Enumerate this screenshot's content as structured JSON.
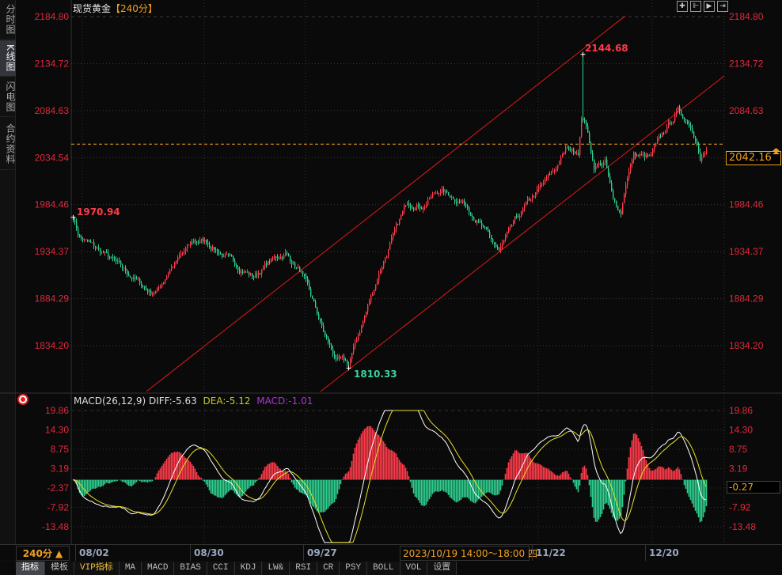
{
  "sidebar": {
    "items": [
      {
        "label": "分时图"
      },
      {
        "label": "K线图",
        "active": true
      },
      {
        "label": "闪电图"
      },
      {
        "label": "合约资料"
      }
    ]
  },
  "header": {
    "title": "现货黄金",
    "period_tag": "【240分】"
  },
  "toolbar": {
    "icons": [
      "crosshair-icon",
      "zoom-in-icon",
      "zoom-out-icon",
      "scroll-right-icon"
    ]
  },
  "colors": {
    "up": "#ff3b4a",
    "down": "#2ecf8f",
    "trendline": "#e01818",
    "diff": "#ffffff",
    "dea": "#e8e020",
    "current": "#f0a020"
  },
  "chart_data": [
    {
      "type": "candlestick",
      "title": "现货黄金 【240分】",
      "yticks": [
        "2184.80",
        "2134.72",
        "2084.63",
        "2034.54",
        "1984.46",
        "1934.37",
        "1884.29",
        "1834.20"
      ],
      "ylim": [
        1785,
        2190
      ],
      "bars": 401,
      "price_path": [
        [
          0,
          1970.9
        ],
        [
          4,
          1949.7
        ],
        [
          19,
          1932.8
        ],
        [
          34,
          1911.7
        ],
        [
          49,
          1890.6
        ],
        [
          54,
          1894.9
        ],
        [
          61,
          1916
        ],
        [
          76,
          1945.4
        ],
        [
          84,
          1945.4
        ],
        [
          99,
          1924.4
        ],
        [
          114,
          1907.5
        ],
        [
          124,
          1924
        ],
        [
          134,
          1932.8
        ],
        [
          144,
          1912
        ],
        [
          151,
          1882.2
        ],
        [
          159,
          1844.3
        ],
        [
          166,
          1819
        ],
        [
          174,
          1814.8
        ],
        [
          184,
          1865.4
        ],
        [
          194,
          1916
        ],
        [
          204,
          1958
        ],
        [
          211,
          1987.6
        ],
        [
          221,
          1983.4
        ],
        [
          231,
          2000.2
        ],
        [
          241,
          1992
        ],
        [
          249,
          1983.4
        ],
        [
          259,
          1958
        ],
        [
          269,
          1934.5
        ],
        [
          279,
          1966
        ],
        [
          286,
          1983
        ],
        [
          296,
          2004.4
        ],
        [
          304,
          2021.3
        ],
        [
          311,
          2042.4
        ],
        [
          319,
          2042.4
        ],
        [
          321,
          2076
        ],
        [
          323,
          2076.1
        ],
        [
          329,
          2025.5
        ],
        [
          336,
          2029.7
        ],
        [
          341,
          1987.6
        ],
        [
          346,
          1976.6
        ],
        [
          349,
          2008.6
        ],
        [
          354,
          2038.1
        ],
        [
          364,
          2034
        ],
        [
          374,
          2063.4
        ],
        [
          382,
          2084.6
        ],
        [
          389,
          2072
        ],
        [
          394,
          2055
        ],
        [
          396,
          2034
        ],
        [
          401,
          2042.16
        ]
      ],
      "spike": {
        "index": 322,
        "high": 2144.68
      },
      "current_price": "2042.16",
      "annotations": [
        {
          "label": "2144.68",
          "kind": "high"
        },
        {
          "label": "1970.94",
          "kind": "start"
        },
        {
          "label": "1810.33",
          "kind": "low"
        }
      ],
      "trendlines": [
        {
          "from": [
            46.5,
            1785.3
          ],
          "to": [
            349,
            2185.6
          ]
        },
        {
          "from": [
            156.5,
            1785.3
          ],
          "to": [
            411.5,
            2121.6
          ]
        }
      ],
      "xticks": [
        {
          "label": "08/02",
          "index": 4
        },
        {
          "label": "08/30",
          "index": 81
        },
        {
          "label": "09/27",
          "index": 145
        },
        {
          "label": "11/22",
          "index": 292
        },
        {
          "label": "12/20",
          "index": 364
        }
      ]
    },
    {
      "type": "macd",
      "params": "MACD(26,12,9)",
      "diff_label": "DIFF:-5.63",
      "dea_label": "DEA:-5.12",
      "macd_label": "MACD:-1.01",
      "yticks": [
        "19.86",
        "14.30",
        "8.75",
        "3.19",
        "-2.37",
        "-7.92",
        "-13.48"
      ],
      "current_value": "-0.27",
      "ylim": [
        -18,
        19.86
      ]
    }
  ],
  "xaxis": {
    "period": "240分 ▲",
    "crosshair_date": "2023/10/19 14:00～18:00 四"
  },
  "tabs": [
    {
      "label": "指标",
      "active": true
    },
    {
      "label": "模板"
    },
    {
      "label": "VIP指标",
      "vip": true
    },
    {
      "label": "MA"
    },
    {
      "label": "MACD"
    },
    {
      "label": "BIAS"
    },
    {
      "label": "CCI"
    },
    {
      "label": "KDJ"
    },
    {
      "label": "LW&"
    },
    {
      "label": "RSI"
    },
    {
      "label": "CR"
    },
    {
      "label": "PSY"
    },
    {
      "label": "BOLL"
    },
    {
      "label": "VOL"
    },
    {
      "label": "设置"
    }
  ]
}
